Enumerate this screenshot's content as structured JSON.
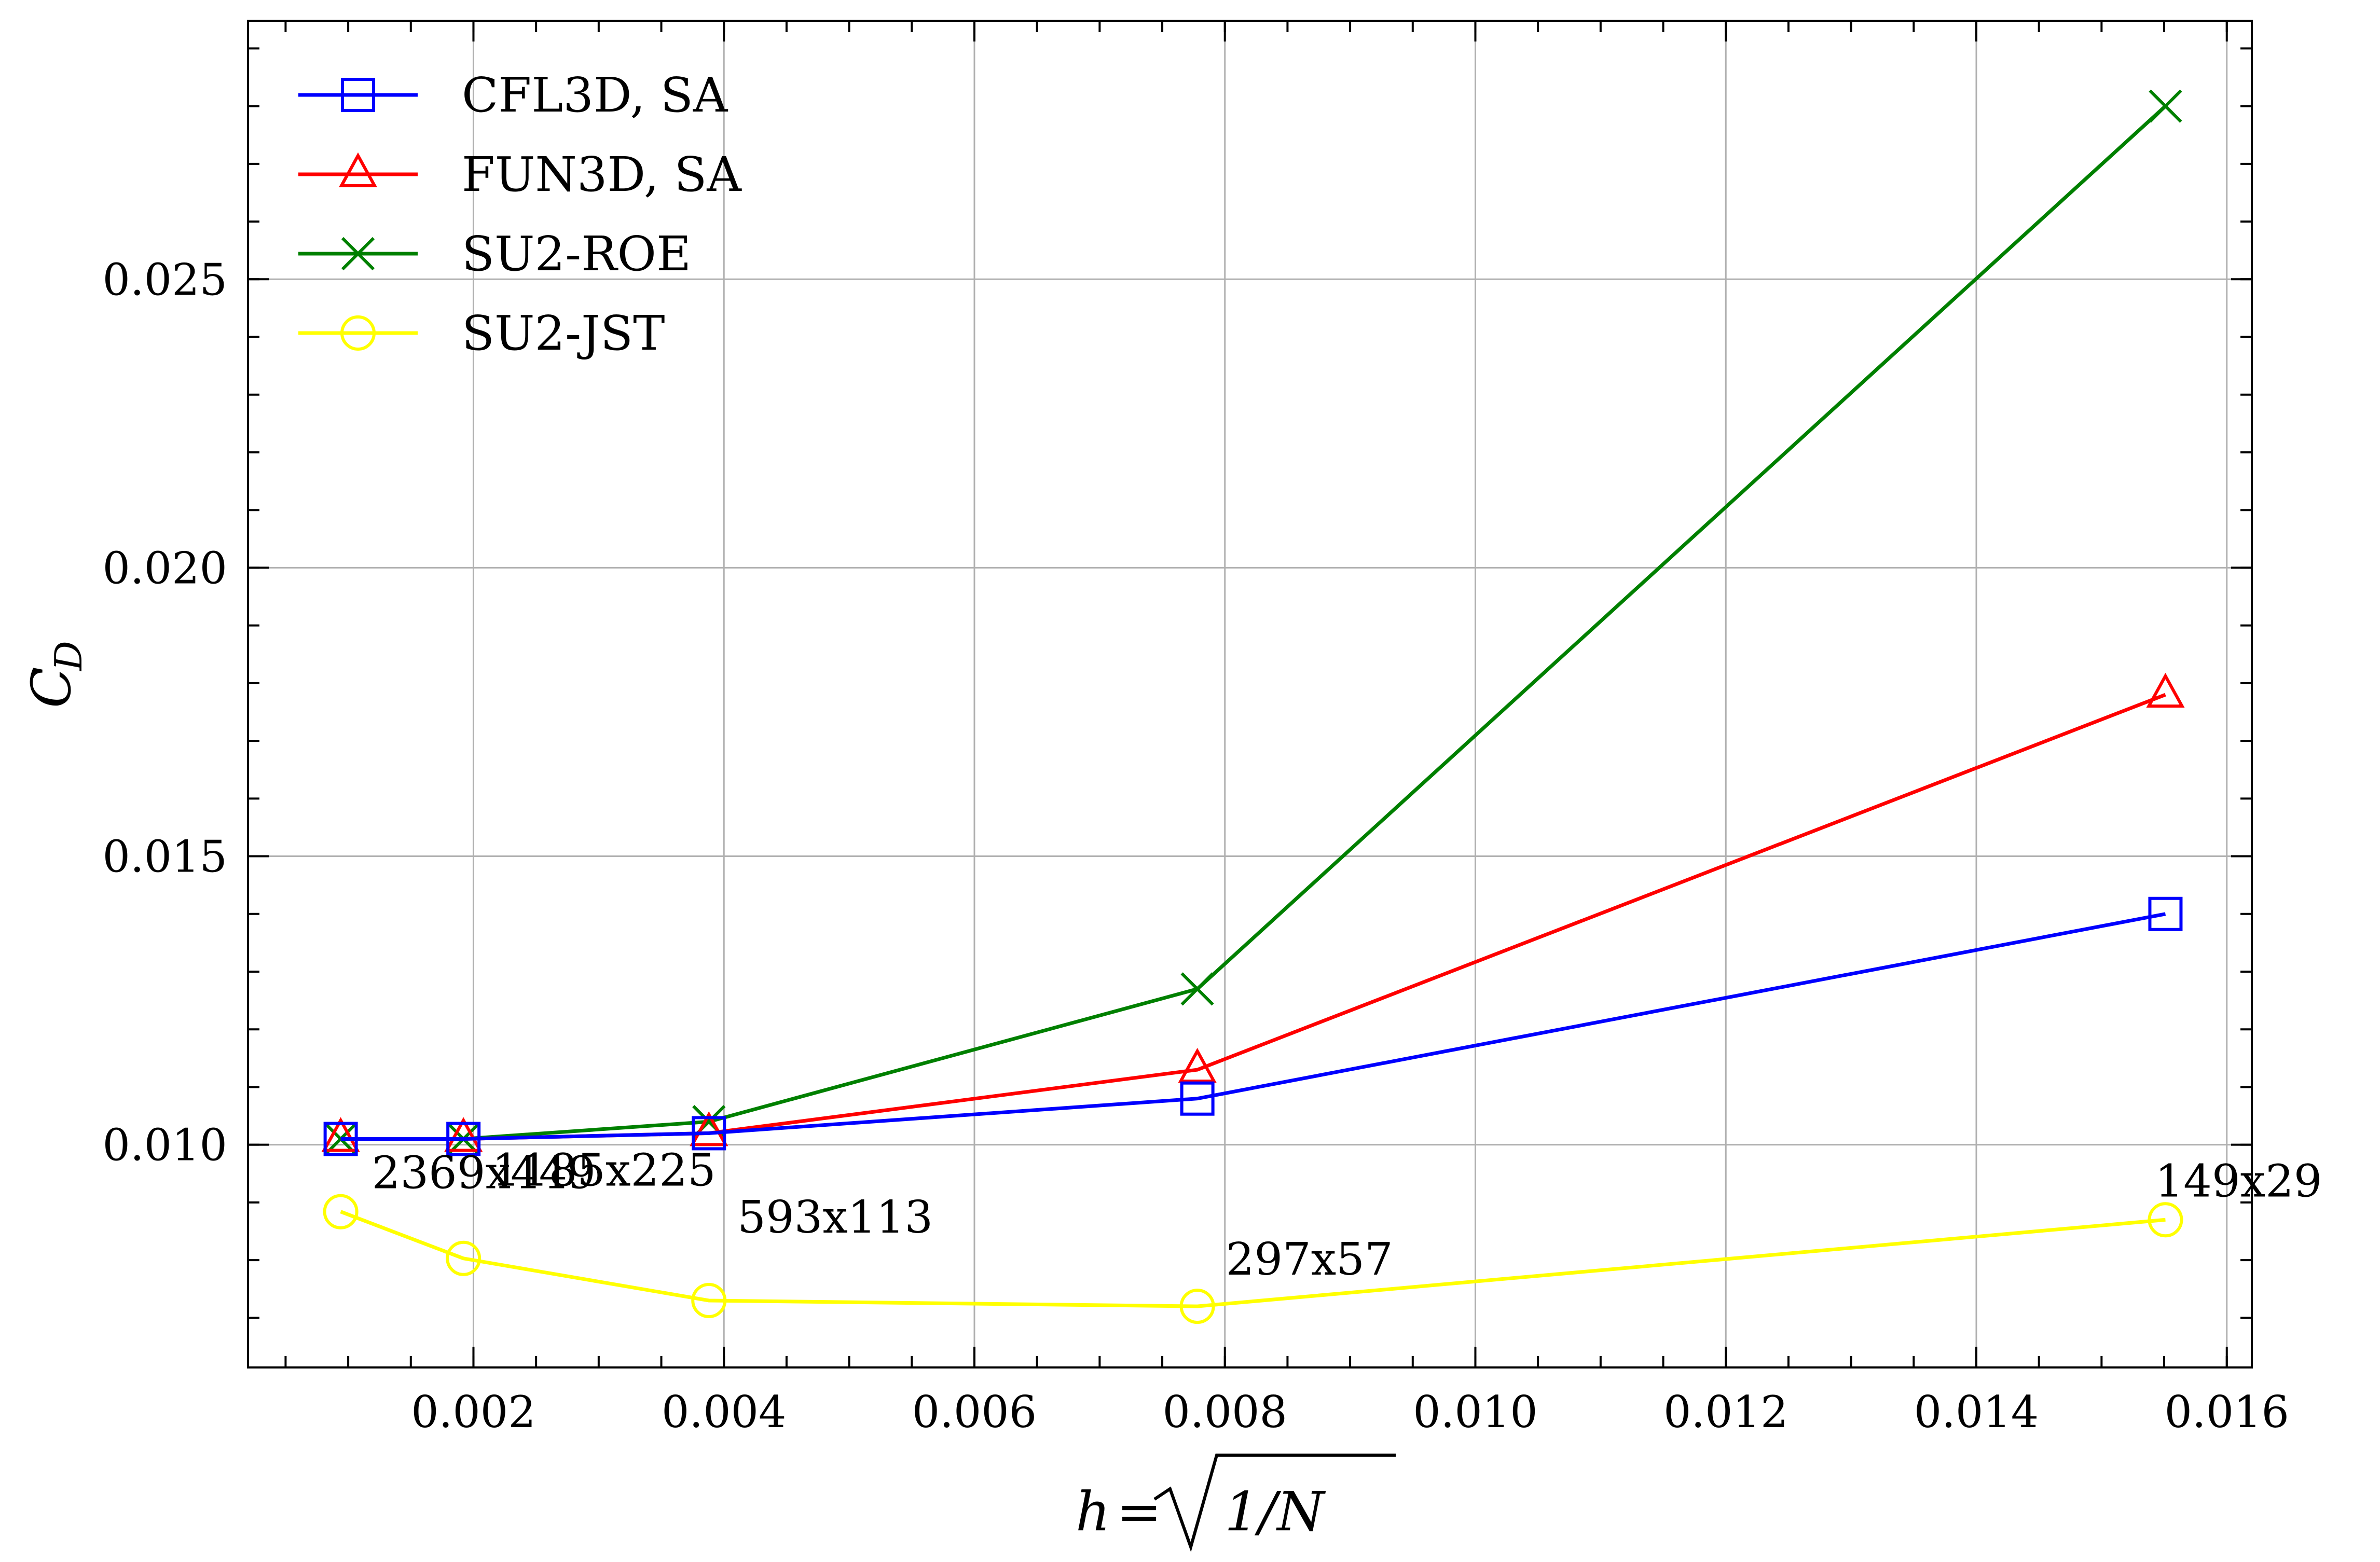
{
  "chart_data": {
    "type": "line",
    "title": "",
    "xlabel": {
      "h": "h",
      "eq": "=",
      "body": "1/N"
    },
    "ylabel": {
      "main": "C",
      "sub": "D"
    },
    "xlim": [
      0.0002,
      0.0162
    ],
    "ylim": [
      0.00614,
      0.02948
    ],
    "grid": true,
    "legend_position": "top-left",
    "x_ticks": [
      {
        "value": 0.002,
        "label": "0.002"
      },
      {
        "value": 0.004,
        "label": "0.004"
      },
      {
        "value": 0.006,
        "label": "0.006"
      },
      {
        "value": 0.008,
        "label": "0.008"
      },
      {
        "value": 0.01,
        "label": "0.010"
      },
      {
        "value": 0.012,
        "label": "0.012"
      },
      {
        "value": 0.014,
        "label": "0.014"
      },
      {
        "value": 0.016,
        "label": "0.016"
      }
    ],
    "y_ticks": [
      {
        "value": 0.01,
        "label": "0.010"
      },
      {
        "value": 0.015,
        "label": "0.015"
      },
      {
        "value": 0.02,
        "label": "0.020"
      },
      {
        "value": 0.025,
        "label": "0.025"
      }
    ],
    "series": [
      {
        "name": "CFL3D, SA",
        "color": "#0000ff",
        "marker": "square",
        "x": [
          0.00094,
          0.00192,
          0.00388,
          0.00778,
          0.01551
        ],
        "y": [
          0.0101,
          0.0101,
          0.0102,
          0.0108,
          0.014
        ]
      },
      {
        "name": "FUN3D, SA",
        "color": "#ff0000",
        "marker": "triangle",
        "x": [
          0.00094,
          0.00192,
          0.00388,
          0.00778,
          0.01551
        ],
        "y": [
          0.0101,
          0.0101,
          0.0102,
          0.0113,
          0.0178
        ]
      },
      {
        "name": "SU2-ROE",
        "color": "#008000",
        "marker": "x",
        "x": [
          0.00094,
          0.00192,
          0.00388,
          0.00778,
          0.01551
        ],
        "y": [
          0.0101,
          0.0101,
          0.0104,
          0.0127,
          0.028
        ]
      },
      {
        "name": "SU2-JST",
        "color": "#ffff00",
        "marker": "circle",
        "x": [
          0.00094,
          0.00192,
          0.00388,
          0.00778,
          0.01551
        ],
        "y": [
          0.00884,
          0.00803,
          0.0073,
          0.0072,
          0.0087
        ]
      }
    ],
    "annotations": [
      {
        "text": "2369x449",
        "x": 0.00094,
        "y": 0.0101
      },
      {
        "text": "1185x225",
        "x": 0.00192,
        "y": 0.00884
      },
      {
        "text": "593x113",
        "x": 0.00388,
        "y": 0.00803
      },
      {
        "text": "297x57",
        "x": 0.00778,
        "y": 0.0073
      },
      {
        "text": "149x29",
        "x": 0.01551,
        "y": 0.0087
      }
    ]
  }
}
